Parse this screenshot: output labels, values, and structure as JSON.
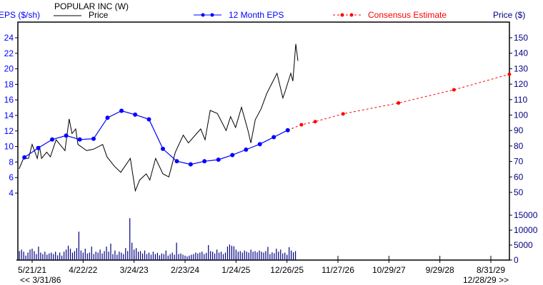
{
  "chart_data": {
    "type": "line",
    "title": "POPULAR INC (W)",
    "left_axis": {
      "label": "EPS ($/sh)",
      "ticks": [
        4,
        6,
        8,
        10,
        12,
        14,
        16,
        18,
        20,
        22,
        24
      ],
      "range": [
        2,
        26.6
      ],
      "color": "#0000ff"
    },
    "right_axis": {
      "label": "Price ($)",
      "ticks": [
        50,
        60,
        70,
        80,
        90,
        100,
        110,
        120,
        130,
        140,
        150
      ],
      "range": [
        41,
        155
      ]
    },
    "volume_axis": {
      "ticks": [
        0,
        5000,
        10000,
        15000
      ],
      "range": [
        0,
        20000
      ]
    },
    "x_axis": {
      "ticks": [
        "5/21/21",
        "4/22/22",
        "3/24/23",
        "2/23/24",
        "1/24/25",
        "12/26/25",
        "11/27/26",
        "10/29/27",
        "9/29/28",
        "8/31/29"
      ],
      "tick_dates": [
        "2021-05-21",
        "2022-04-22",
        "2023-03-24",
        "2024-02-23",
        "2025-01-24",
        "2025-12-26",
        "2026-11-27",
        "2027-10-29",
        "2028-09-29",
        "2029-08-31"
      ],
      "range_start_label": "<< 3/31/86",
      "range_end_label": "12/28/29 >>",
      "range": [
        "2021-02-24",
        "2029-12-31"
      ]
    },
    "legend": {
      "price": "Price",
      "eps": "12 Month EPS",
      "consensus": "Consensus Estimate",
      "placement": "top"
    },
    "colors": {
      "price": "#000000",
      "eps": "#0000ff",
      "consensus": "#ff0000",
      "volume": "#000080",
      "price_axis": "#000080"
    },
    "series": [
      {
        "name": "Price",
        "axis": "right",
        "points": [
          [
            "2021-02-24",
            65.2
          ],
          [
            "2021-03-25",
            72
          ],
          [
            "2021-04-27",
            72
          ],
          [
            "2021-05-21",
            81
          ],
          [
            "2021-06-24",
            72
          ],
          [
            "2021-07-08",
            80
          ],
          [
            "2021-07-22",
            72
          ],
          [
            "2021-08-25",
            76
          ],
          [
            "2021-09-18",
            73
          ],
          [
            "2021-10-26",
            84
          ],
          [
            "2021-12-23",
            77
          ],
          [
            "2022-01-20",
            97.5
          ],
          [
            "2022-02-08",
            88
          ],
          [
            "2022-03-04",
            91
          ],
          [
            "2022-03-19",
            81
          ],
          [
            "2022-05-15",
            77
          ],
          [
            "2022-07-02",
            78
          ],
          [
            "2022-08-29",
            81
          ],
          [
            "2022-09-26",
            73
          ],
          [
            "2022-11-13",
            67
          ],
          [
            "2022-12-26",
            63
          ],
          [
            "2023-02-27",
            72
          ],
          [
            "2023-04-01",
            51
          ],
          [
            "2023-04-30",
            58
          ],
          [
            "2023-06-12",
            62
          ],
          [
            "2023-07-06",
            58
          ],
          [
            "2023-08-13",
            72
          ],
          [
            "2023-09-30",
            62
          ],
          [
            "2023-11-08",
            60
          ],
          [
            "2023-12-21",
            76
          ],
          [
            "2024-02-11",
            87
          ],
          [
            "2024-03-16",
            82
          ],
          [
            "2024-06-05",
            91
          ],
          [
            "2024-07-04",
            84
          ],
          [
            "2024-08-07",
            103
          ],
          [
            "2024-09-23",
            101
          ],
          [
            "2024-11-20",
            90
          ],
          [
            "2024-12-19",
            99
          ],
          [
            "2025-01-21",
            92
          ],
          [
            "2025-03-01",
            105
          ],
          [
            "2025-04-13",
            90
          ],
          [
            "2025-05-02",
            82
          ],
          [
            "2025-05-31",
            97
          ],
          [
            "2025-07-08",
            104
          ],
          [
            "2025-08-15",
            114
          ],
          [
            "2025-10-21",
            127
          ],
          [
            "2025-11-29",
            111
          ],
          [
            "2025-12-13",
            115
          ],
          [
            "2026-01-20",
            127
          ],
          [
            "2026-02-03",
            122
          ],
          [
            "2026-02-22",
            146
          ],
          [
            "2026-03-08",
            135
          ]
        ]
      },
      {
        "name": "12 Month EPS",
        "axis": "left",
        "points": [
          [
            "2021-03-31",
            8.6
          ],
          [
            "2021-06-30",
            9.8
          ],
          [
            "2021-09-30",
            10.9
          ],
          [
            "2021-12-31",
            11.4
          ],
          [
            "2022-03-31",
            10.9
          ],
          [
            "2022-06-30",
            11.0
          ],
          [
            "2022-09-30",
            13.7
          ],
          [
            "2022-12-31",
            14.6
          ],
          [
            "2023-03-31",
            14.1
          ],
          [
            "2023-06-30",
            13.5
          ],
          [
            "2023-09-30",
            9.7
          ],
          [
            "2023-12-31",
            8.1
          ],
          [
            "2024-03-31",
            7.7
          ],
          [
            "2024-06-30",
            8.1
          ],
          [
            "2024-09-30",
            8.3
          ],
          [
            "2024-12-31",
            8.9
          ],
          [
            "2025-03-31",
            9.6
          ],
          [
            "2025-06-30",
            10.3
          ],
          [
            "2025-09-30",
            11.2
          ],
          [
            "2025-12-31",
            12.1
          ]
        ]
      },
      {
        "name": "Consensus Estimate",
        "axis": "left",
        "points": [
          [
            "2025-12-31",
            12.1
          ],
          [
            "2026-03-31",
            12.8
          ],
          [
            "2026-06-30",
            13.2
          ],
          [
            "2026-12-31",
            14.2
          ],
          [
            "2027-12-31",
            15.6
          ],
          [
            "2028-12-31",
            17.3
          ],
          [
            "2029-12-31",
            19.3
          ]
        ]
      }
    ],
    "volume": {
      "start": "2021-02-26",
      "interval_days": 14,
      "values": [
        3000,
        3500,
        2800,
        1500,
        2500,
        3500,
        3800,
        3000,
        2000,
        4500,
        2500,
        2000,
        2800,
        1800,
        2200,
        2500,
        2000,
        2800,
        1600,
        2500,
        1500,
        2800,
        3500,
        4800,
        3800,
        2500,
        3000,
        4000,
        9500,
        3200,
        2500,
        3800,
        2200,
        2500,
        4500,
        2000,
        2800,
        2500,
        3500,
        2200,
        3000,
        4500,
        2800,
        5500,
        2000,
        3200,
        1800,
        2800,
        2500,
        2000,
        4000,
        3000,
        14000,
        5800,
        3500,
        4000,
        2800,
        3000,
        2200,
        3200,
        2000,
        2500,
        1800,
        2800,
        2000,
        2400,
        1600,
        2200,
        2000,
        3200,
        1500,
        2000,
        2500,
        1800,
        5800,
        2000,
        2200,
        1800,
        1500,
        1200,
        1500,
        1800,
        2000,
        2500,
        2200,
        2500,
        2800,
        2000,
        2400,
        5000,
        3000,
        2800,
        2200,
        3500,
        2500,
        2800,
        2000,
        2500,
        4500,
        5200,
        4800,
        4600,
        3500,
        2800,
        3000,
        2500,
        3200,
        2800,
        2500,
        3500,
        2800,
        3000,
        2600,
        3200,
        2800,
        2500,
        3000,
        4400,
        2000,
        2600,
        2300,
        3800,
        2800,
        3500,
        2200,
        2500,
        1800,
        4300,
        3200,
        2600,
        3000
      ]
    }
  }
}
